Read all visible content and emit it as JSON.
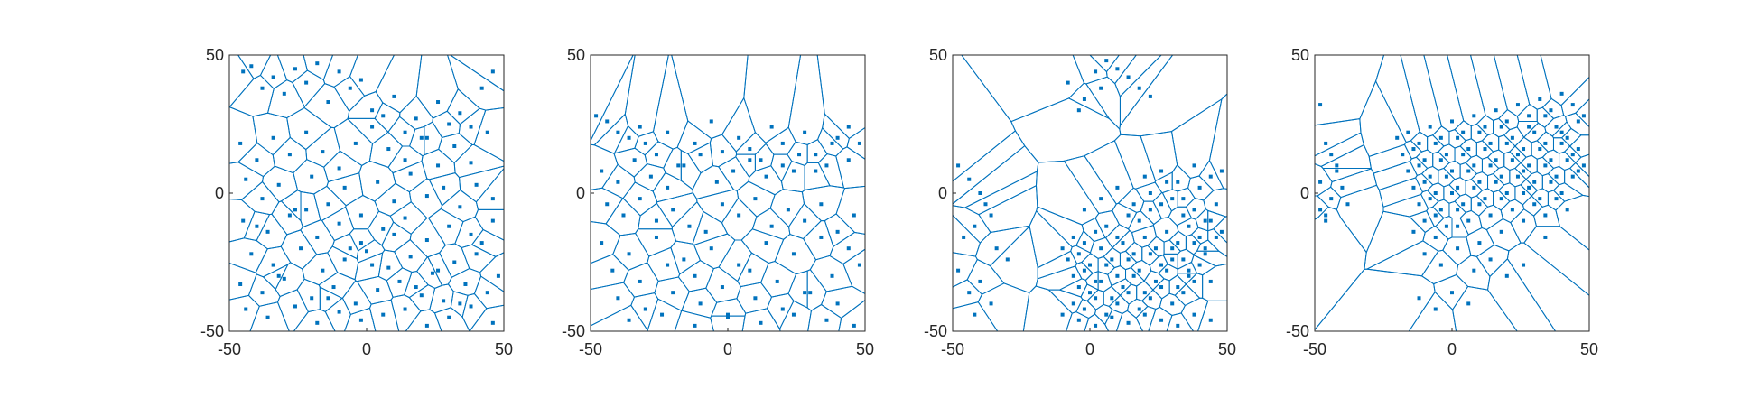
{
  "chart_data": [
    {
      "type": "scatter",
      "variant": "voronoi",
      "title": "",
      "xlabel": "",
      "ylabel": "",
      "xlim": [
        -50,
        50
      ],
      "ylim": [
        -50,
        50
      ],
      "xticks": [
        -50,
        0,
        50
      ],
      "yticks": [
        -50,
        0,
        50
      ],
      "xtick_labels": [
        "-50",
        "0",
        "50"
      ],
      "ytick_labels": [
        "-50",
        "0",
        "50"
      ],
      "grid": false,
      "point_color": "#0072BD",
      "series": [
        {
          "x": [
            -45,
            -42,
            -38,
            -34,
            -30,
            -26,
            -22,
            -18,
            -14,
            -10,
            -6,
            -2,
            2,
            6,
            10,
            14,
            18,
            22,
            26,
            30,
            34,
            38,
            42,
            46,
            -46,
            -40,
            -34,
            -28,
            -22,
            -16,
            -10,
            -4,
            2,
            8,
            14,
            20,
            26,
            32,
            38,
            44,
            -44,
            -38,
            -32,
            -26,
            -20,
            -14,
            -8,
            -2,
            4,
            10,
            16,
            22,
            28,
            34,
            40,
            46,
            -45,
            -36,
            -28,
            -18,
            -10,
            -2,
            6,
            14,
            22,
            30,
            38,
            46,
            -42,
            -34,
            -24,
            -16,
            -8,
            0,
            8,
            16,
            24,
            32,
            40,
            48,
            -46,
            -38,
            -30,
            -20,
            -12,
            -4,
            4,
            12,
            20,
            28,
            36,
            44,
            -44,
            -36,
            -26,
            -18,
            -10,
            -2,
            6,
            14,
            22,
            30,
            38,
            46,
            -40,
            -32,
            -22,
            -14,
            -6,
            2,
            10,
            18,
            26,
            34,
            42
          ],
          "y": [
            44,
            46,
            38,
            42,
            36,
            45,
            40,
            47,
            33,
            44,
            38,
            41,
            30,
            28,
            35,
            22,
            27,
            20,
            33,
            25,
            29,
            24,
            38,
            44,
            18,
            12,
            20,
            14,
            22,
            15,
            9,
            18,
            24,
            16,
            12,
            20,
            10,
            17,
            11,
            22,
            5,
            -2,
            3,
            -6,
            6,
            -4,
            2,
            -8,
            4,
            -3,
            7,
            -1,
            2,
            -5,
            3,
            -2,
            -10,
            -14,
            -8,
            -16,
            -11,
            -18,
            -13,
            -9,
            -17,
            -12,
            -15,
            -10,
            -22,
            -26,
            -20,
            -28,
            -24,
            -21,
            -27,
            -23,
            -29,
            -25,
            -22,
            -30,
            -33,
            -36,
            -31,
            -38,
            -34,
            -40,
            -35,
            -32,
            -37,
            -39,
            -33,
            -36,
            -42,
            -45,
            -41,
            -47,
            -43,
            -46,
            -44,
            -42,
            -48,
            -45,
            -41,
            -47,
            -12,
            -30,
            -6,
            -38,
            -20,
            -26,
            -15,
            -34,
            -28,
            -40,
            -18
          ]
        }
      ]
    },
    {
      "type": "scatter",
      "variant": "voronoi",
      "title": "",
      "xlabel": "",
      "ylabel": "",
      "xlim": [
        -50,
        50
      ],
      "ylim": [
        -50,
        50
      ],
      "xticks": [
        -50,
        0,
        50
      ],
      "yticks": [
        -50,
        0,
        50
      ],
      "xtick_labels": [
        "-50",
        "0",
        "50"
      ],
      "ytick_labels": [
        "-50",
        "0",
        "50"
      ],
      "grid": false,
      "point_color": "#0072BD",
      "series": [
        {
          "x": [
            -48,
            -44,
            -40,
            -36,
            -32,
            -30,
            -26,
            -22,
            -18,
            -12,
            -6,
            -2,
            4,
            8,
            12,
            16,
            20,
            24,
            28,
            32,
            36,
            40,
            44,
            48,
            -46,
            -40,
            -34,
            -28,
            -22,
            -16,
            -10,
            -4,
            2,
            8,
            14,
            20,
            26,
            32,
            38,
            44,
            -44,
            -38,
            -32,
            -26,
            -20,
            -14,
            -8,
            -2,
            4,
            10,
            16,
            22,
            28,
            34,
            40,
            46,
            -46,
            -36,
            -26,
            -16,
            -6,
            4,
            14,
            24,
            34,
            44,
            -42,
            -32,
            -22,
            -12,
            -2,
            8,
            18,
            28,
            38,
            48,
            -40,
            -30,
            -20,
            -10,
            0,
            10,
            20,
            30,
            40,
            -36,
            -24,
            -12,
            0,
            12,
            24,
            36,
            46
          ],
          "y": [
            28,
            26,
            22,
            20,
            24,
            18,
            14,
            22,
            10,
            18,
            26,
            15,
            20,
            16,
            12,
            24,
            18,
            8,
            22,
            14,
            10,
            20,
            24,
            18,
            8,
            4,
            12,
            6,
            2,
            10,
            14,
            4,
            8,
            12,
            6,
            10,
            14,
            8,
            18,
            12,
            -4,
            -8,
            -2,
            -10,
            -6,
            -12,
            -14,
            -4,
            -8,
            -2,
            -12,
            -6,
            -10,
            -4,
            -14,
            -8,
            -18,
            -22,
            -16,
            -24,
            -20,
            -26,
            -18,
            -22,
            -16,
            -20,
            -28,
            -32,
            -26,
            -30,
            -34,
            -28,
            -32,
            -36,
            -30,
            -26,
            -38,
            -42,
            -36,
            -40,
            -44,
            -38,
            -42,
            -36,
            -40,
            -46,
            -44,
            -48,
            -45,
            -47,
            -44,
            -46,
            -48
          ]
        }
      ]
    },
    {
      "type": "scatter",
      "variant": "voronoi",
      "title": "",
      "xlabel": "",
      "ylabel": "",
      "xlim": [
        -50,
        50
      ],
      "ylim": [
        -50,
        50
      ],
      "xticks": [
        -50,
        0,
        50
      ],
      "yticks": [
        -50,
        0,
        50
      ],
      "xtick_labels": [
        "-50",
        "0",
        "50"
      ],
      "ytick_labels": [
        "-50",
        "0",
        "50"
      ],
      "grid": false,
      "point_color": "#0072BD",
      "series": [
        {
          "x": [
            -8,
            2,
            6,
            10,
            14,
            18,
            22,
            -4,
            -2,
            4,
            -48,
            -44,
            -40,
            -38,
            -36,
            -42,
            -46,
            -34,
            -30,
            -48,
            -40,
            -44,
            -36,
            -42,
            -10,
            -6,
            -2,
            2,
            6,
            10,
            14,
            18,
            22,
            26,
            30,
            34,
            38,
            42,
            46,
            -8,
            -4,
            0,
            4,
            8,
            12,
            16,
            20,
            24,
            28,
            32,
            36,
            40,
            44,
            48,
            -6,
            -2,
            2,
            6,
            10,
            14,
            18,
            22,
            26,
            30,
            34,
            38,
            42,
            46,
            -4,
            0,
            4,
            8,
            12,
            16,
            20,
            24,
            28,
            32,
            36,
            40,
            44,
            -6,
            -2,
            2,
            6,
            10,
            14,
            18,
            22,
            26,
            30,
            34,
            38,
            -10,
            -4,
            2,
            8,
            14,
            20,
            26,
            32,
            38,
            44,
            -2,
            4,
            10,
            16,
            22,
            28,
            34,
            40,
            20,
            26,
            32,
            38,
            44,
            48,
            30,
            36,
            42
          ],
          "y": [
            40,
            44,
            48,
            45,
            42,
            38,
            35,
            30,
            34,
            38,
            10,
            5,
            0,
            -4,
            -8,
            -12,
            -16,
            -20,
            -24,
            -28,
            -32,
            -36,
            -40,
            -44,
            -20,
            -16,
            -18,
            -14,
            -12,
            -16,
            -8,
            -10,
            -6,
            -4,
            -2,
            -8,
            -6,
            -10,
            -4,
            -24,
            -22,
            -26,
            -20,
            -24,
            -18,
            -22,
            -16,
            -20,
            -14,
            -18,
            -12,
            -16,
            -10,
            -14,
            -30,
            -28,
            -32,
            -26,
            -30,
            -24,
            -28,
            -22,
            -26,
            -20,
            -24,
            -18,
            -22,
            -16,
            -34,
            -36,
            -32,
            -38,
            -34,
            -30,
            -36,
            -32,
            -28,
            -34,
            -30,
            -26,
            -32,
            -40,
            -42,
            -38,
            -44,
            -40,
            -36,
            -42,
            -38,
            -34,
            -40,
            -36,
            -32,
            -44,
            -46,
            -48,
            -45,
            -47,
            -44,
            -46,
            -48,
            -44,
            -46,
            -6,
            -2,
            2,
            -4,
            0,
            4,
            -2,
            2,
            6,
            8,
            4,
            10,
            6,
            8,
            -24,
            -28,
            -20
          ]
        }
      ]
    },
    {
      "type": "scatter",
      "variant": "voronoi",
      "title": "",
      "xlabel": "",
      "ylabel": "",
      "xlim": [
        -50,
        50
      ],
      "ylim": [
        -50,
        50
      ],
      "xticks": [
        -50,
        0,
        50
      ],
      "yticks": [
        -50,
        0,
        50
      ],
      "xtick_labels": [
        "-50",
        "0",
        "50"
      ],
      "ytick_labels": [
        "-50",
        "0",
        "50"
      ],
      "grid": false,
      "point_color": "#0072BD",
      "series": [
        {
          "x": [
            -48,
            -46,
            -44,
            -42,
            -48,
            -44,
            -46,
            -40,
            -38,
            -46,
            -42,
            -48,
            -20,
            -16,
            -12,
            -8,
            -4,
            0,
            4,
            8,
            12,
            16,
            20,
            24,
            28,
            32,
            36,
            40,
            44,
            48,
            -18,
            -14,
            -10,
            -6,
            -2,
            2,
            6,
            10,
            14,
            18,
            22,
            26,
            30,
            34,
            38,
            42,
            46,
            -16,
            -12,
            -8,
            -4,
            0,
            4,
            8,
            12,
            16,
            20,
            24,
            28,
            32,
            36,
            40,
            44,
            48,
            -14,
            -10,
            -6,
            -2,
            2,
            6,
            10,
            14,
            18,
            22,
            26,
            30,
            34,
            38,
            42,
            46,
            -12,
            -8,
            -4,
            0,
            4,
            8,
            12,
            16,
            20,
            24,
            28,
            32,
            36,
            40,
            44,
            -10,
            -6,
            -2,
            2,
            6,
            10,
            14,
            18,
            22,
            26,
            30,
            34,
            38,
            42,
            -14,
            -6,
            2,
            10,
            18,
            26,
            34,
            -10,
            -4,
            2,
            8,
            14,
            20,
            26,
            28,
            34,
            40,
            46,
            -12,
            -6,
            0,
            6
          ],
          "y": [
            32,
            18,
            14,
            10,
            4,
            -2,
            -8,
            2,
            -4,
            -10,
            8,
            -6,
            20,
            22,
            18,
            24,
            20,
            26,
            22,
            28,
            24,
            30,
            26,
            32,
            28,
            34,
            30,
            36,
            32,
            28,
            14,
            16,
            12,
            18,
            14,
            20,
            16,
            22,
            18,
            24,
            20,
            16,
            22,
            18,
            24,
            20,
            16,
            8,
            10,
            6,
            12,
            8,
            14,
            10,
            16,
            12,
            18,
            14,
            10,
            16,
            12,
            18,
            14,
            10,
            2,
            4,
            0,
            6,
            2,
            8,
            4,
            10,
            6,
            12,
            8,
            4,
            10,
            6,
            12,
            8,
            -4,
            -2,
            -6,
            0,
            -4,
            2,
            -2,
            4,
            0,
            6,
            2,
            -2,
            4,
            0,
            6,
            -10,
            -8,
            -12,
            -6,
            -10,
            -4,
            -8,
            -2,
            -6,
            0,
            -4,
            -8,
            -2,
            -6,
            -14,
            -16,
            -12,
            -18,
            -14,
            -10,
            -16,
            -22,
            -26,
            -20,
            -28,
            -24,
            -30,
            -26,
            24,
            28,
            22,
            26,
            -38,
            -42,
            -36,
            -40
          ]
        }
      ]
    }
  ]
}
